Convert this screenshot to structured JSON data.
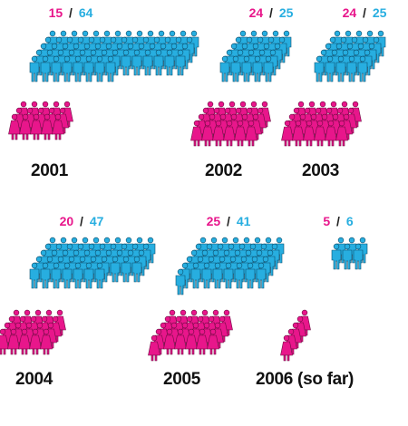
{
  "colors": {
    "women": "#e8168b",
    "men": "#27aee0",
    "separator": "#222222",
    "text": "#111111"
  },
  "icon_names": {
    "women": "woman-figure-icon",
    "men": "man-figure-icon"
  },
  "chart_data": {
    "type": "pictogram",
    "title": "",
    "categories": [
      "2001",
      "2002",
      "2003",
      "2004",
      "2005",
      "2006 (so far)"
    ],
    "series": [
      {
        "values": [
          15,
          24,
          24,
          20,
          25,
          5
        ]
      },
      {
        "values": [
          64,
          25,
          25,
          47,
          41,
          6
        ]
      }
    ],
    "panels": [
      {
        "year": "2001",
        "women": 15,
        "men": 64,
        "separator": "/"
      },
      {
        "year": "2002",
        "women": 24,
        "men": 25,
        "separator": "/"
      },
      {
        "year": "2003",
        "women": 24,
        "men": 25,
        "separator": "/"
      },
      {
        "year": "2004",
        "women": 20,
        "men": 47,
        "separator": "/"
      },
      {
        "year": "2005",
        "women": 25,
        "men": 41,
        "separator": "/"
      },
      {
        "year": "2006 (so far)",
        "women": 5,
        "men": 6,
        "separator": "/"
      }
    ]
  }
}
